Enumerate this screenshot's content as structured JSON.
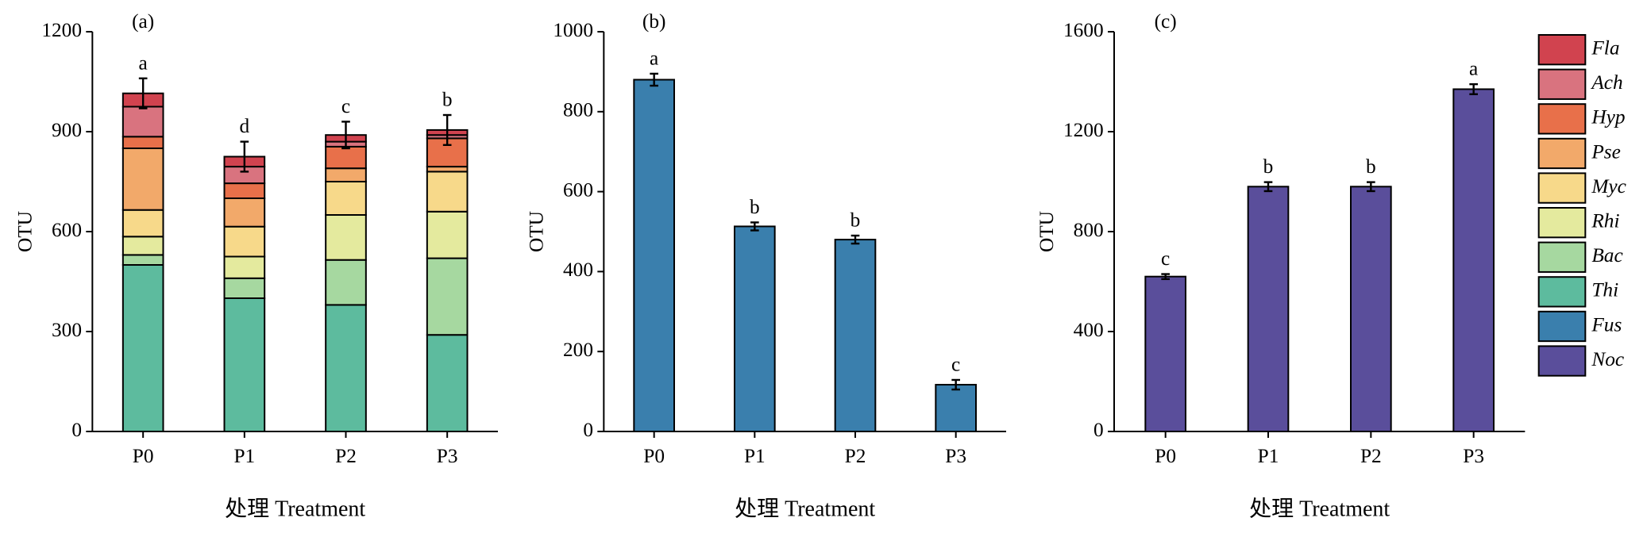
{
  "chart_data": [
    {
      "type": "stacked_bar",
      "panel_label": "(a)",
      "y_label": "OTU",
      "x_label": "处理 Treatment",
      "categories": [
        "P0",
        "P1",
        "P2",
        "P3"
      ],
      "ylim": [
        0,
        1200
      ],
      "yticks": [
        0,
        300,
        600,
        900,
        1200
      ],
      "series": [
        {
          "name": "Fla",
          "color": "#d1434f",
          "values": [
            40,
            30,
            20,
            15
          ]
        },
        {
          "name": "Ach",
          "color": "#d9737f",
          "values": [
            90,
            50,
            15,
            10
          ]
        },
        {
          "name": "Hyp",
          "color": "#e8704a",
          "values": [
            35,
            45,
            65,
            85
          ]
        },
        {
          "name": "Pse",
          "color": "#f2a96a",
          "values": [
            185,
            85,
            40,
            15
          ]
        },
        {
          "name": "Myc",
          "color": "#f7d98a",
          "values": [
            80,
            90,
            100,
            120
          ]
        },
        {
          "name": "Rhi",
          "color": "#e4ea9e",
          "values": [
            55,
            65,
            135,
            140
          ]
        },
        {
          "name": "Bac",
          "color": "#a6d8a0",
          "values": [
            30,
            60,
            135,
            230
          ]
        },
        {
          "name": "Thi",
          "color": "#5dbb9e",
          "values": [
            500,
            400,
            380,
            290
          ]
        }
      ],
      "errors": [
        45,
        45,
        40,
        45
      ],
      "annotations": [
        "a",
        "d",
        "c",
        "b"
      ]
    },
    {
      "type": "bar",
      "panel_label": "(b)",
      "y_label": "OTU",
      "x_label": "处理 Treatment",
      "categories": [
        "P0",
        "P1",
        "P2",
        "P3"
      ],
      "ylim": [
        0,
        1000
      ],
      "yticks": [
        0,
        200,
        400,
        600,
        800,
        1000
      ],
      "series": [
        {
          "name": "Fus",
          "color": "#3a7fad",
          "values": [
            880,
            513,
            480,
            117
          ],
          "errors": [
            15,
            10,
            10,
            12
          ]
        }
      ],
      "annotations": [
        "a",
        "b",
        "b",
        "c"
      ]
    },
    {
      "type": "bar",
      "panel_label": "(c)",
      "y_label": "OTU",
      "x_label": "处理 Treatment",
      "categories": [
        "P0",
        "P1",
        "P2",
        "P3"
      ],
      "ylim": [
        0,
        1600
      ],
      "yticks": [
        0,
        400,
        800,
        1200,
        1600
      ],
      "series": [
        {
          "name": "Noc",
          "color": "#5a4e9b",
          "values": [
            620,
            980,
            980,
            1370
          ],
          "errors": [
            10,
            18,
            18,
            20
          ]
        }
      ],
      "annotations": [
        "c",
        "b",
        "b",
        "a"
      ]
    }
  ]
}
